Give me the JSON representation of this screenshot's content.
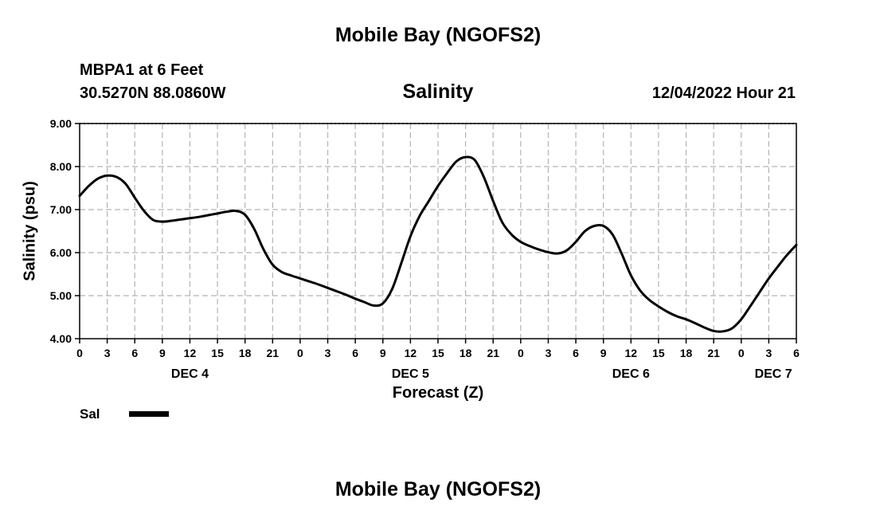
{
  "header": {
    "title_top": "Mobile Bay (NGOFS2)",
    "station": "MBPA1 at 6 Feet",
    "coordinates": "30.5270N  88.0860W",
    "forecast_time": "12/04/2022 Hour 21"
  },
  "footer": {
    "title_bottom": "Mobile Bay (NGOFS2)"
  },
  "colors": {
    "line": "#000000",
    "grid": "#b4b4b4"
  },
  "chart_data": {
    "type": "line",
    "title": "Salinity",
    "xlabel": "Forecast (Z)",
    "ylabel": "Salinity (psu)",
    "x_unit": "hours from 00Z Dec 4 2022",
    "xlim": [
      0,
      78
    ],
    "ylim": [
      4.0,
      9.0
    ],
    "grid": true,
    "legend_position": "bottom-left",
    "y_ticks": [
      {
        "value": 4.0,
        "label": "4.00"
      },
      {
        "value": 5.0,
        "label": "5.00"
      },
      {
        "value": 6.0,
        "label": "6.00"
      },
      {
        "value": 7.0,
        "label": "7.00"
      },
      {
        "value": 8.0,
        "label": "8.00"
      },
      {
        "value": 9.0,
        "label": "9.00"
      }
    ],
    "x_ticks": [
      {
        "value": 0,
        "label": "0"
      },
      {
        "value": 3,
        "label": "3"
      },
      {
        "value": 6,
        "label": "6"
      },
      {
        "value": 9,
        "label": "9"
      },
      {
        "value": 12,
        "label": "12"
      },
      {
        "value": 15,
        "label": "15"
      },
      {
        "value": 18,
        "label": "18"
      },
      {
        "value": 21,
        "label": "21"
      },
      {
        "value": 24,
        "label": "0"
      },
      {
        "value": 27,
        "label": "3"
      },
      {
        "value": 30,
        "label": "6"
      },
      {
        "value": 33,
        "label": "9"
      },
      {
        "value": 36,
        "label": "12"
      },
      {
        "value": 39,
        "label": "15"
      },
      {
        "value": 42,
        "label": "18"
      },
      {
        "value": 45,
        "label": "21"
      },
      {
        "value": 48,
        "label": "0"
      },
      {
        "value": 51,
        "label": "3"
      },
      {
        "value": 54,
        "label": "6"
      },
      {
        "value": 57,
        "label": "9"
      },
      {
        "value": 60,
        "label": "12"
      },
      {
        "value": 63,
        "label": "15"
      },
      {
        "value": 66,
        "label": "18"
      },
      {
        "value": 69,
        "label": "21"
      },
      {
        "value": 72,
        "label": "0"
      },
      {
        "value": 75,
        "label": "3"
      },
      {
        "value": 78,
        "label": "6"
      }
    ],
    "date_labels": [
      {
        "value": 12,
        "label": "DEC 4"
      },
      {
        "value": 36,
        "label": "DEC 5"
      },
      {
        "value": 60,
        "label": "DEC 6"
      },
      {
        "value": 75.5,
        "label": "DEC 7"
      }
    ],
    "series": [
      {
        "name": "Sal",
        "x": [
          0,
          1,
          2,
          3,
          4,
          5,
          6,
          7,
          8,
          9,
          10,
          11,
          12,
          13,
          14,
          15,
          16,
          17,
          18,
          19,
          20,
          21,
          22,
          23,
          24,
          25,
          26,
          27,
          28,
          29,
          30,
          31,
          32,
          33,
          34,
          35,
          36,
          37,
          38,
          39,
          40,
          41,
          42,
          43,
          44,
          45,
          46,
          47,
          48,
          49,
          50,
          51,
          52,
          53,
          54,
          55,
          56,
          57,
          58,
          59,
          60,
          61,
          62,
          63,
          64,
          65,
          66,
          67,
          68,
          69,
          70,
          71,
          72,
          73,
          74,
          75,
          76,
          77,
          78
        ],
        "y": [
          7.32,
          7.55,
          7.72,
          7.79,
          7.76,
          7.6,
          7.28,
          6.97,
          6.76,
          6.72,
          6.74,
          6.77,
          6.8,
          6.83,
          6.87,
          6.91,
          6.95,
          6.97,
          6.88,
          6.55,
          6.08,
          5.72,
          5.55,
          5.47,
          5.4,
          5.33,
          5.26,
          5.18,
          5.1,
          5.02,
          4.93,
          4.85,
          4.77,
          4.82,
          5.15,
          5.75,
          6.38,
          6.85,
          7.2,
          7.55,
          7.85,
          8.12,
          8.22,
          8.15,
          7.75,
          7.2,
          6.7,
          6.42,
          6.25,
          6.15,
          6.07,
          6.01,
          5.98,
          6.05,
          6.25,
          6.5,
          6.62,
          6.62,
          6.42,
          5.97,
          5.47,
          5.12,
          4.9,
          4.75,
          4.62,
          4.52,
          4.45,
          4.36,
          4.26,
          4.18,
          4.17,
          4.24,
          4.45,
          4.76,
          5.08,
          5.4,
          5.68,
          5.95,
          6.18
        ]
      }
    ]
  }
}
